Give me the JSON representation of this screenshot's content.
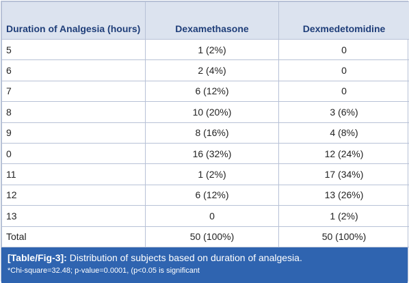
{
  "table": {
    "headers": [
      "Duration of Analgesia (hours)",
      "Dexamethasone",
      "Dexmedetomidine"
    ],
    "rows": [
      [
        "5",
        "1 (2%)",
        "0"
      ],
      [
        "6",
        "2 (4%)",
        "0"
      ],
      [
        "7",
        "6 (12%)",
        "0"
      ],
      [
        "8",
        "10 (20%)",
        "3 (6%)"
      ],
      [
        "9",
        "8 (16%)",
        "4 (8%)"
      ],
      [
        "0",
        "16 (32%)",
        "12 (24%)"
      ],
      [
        "11",
        "1 (2%)",
        "17 (34%)"
      ],
      [
        "12",
        "6 (12%)",
        "13 (26%)"
      ],
      [
        "13",
        "0",
        "1 (2%)"
      ],
      [
        "Total",
        "50 (100%)",
        "50 (100%)"
      ]
    ]
  },
  "caption": {
    "tag": "[Table/Fig-3]:",
    "text": " Distribution of subjects based on duration of analgesia.",
    "footnote": "*Chi-square=32.48; p-value=0.0001, (p<0.05 is significant"
  }
}
